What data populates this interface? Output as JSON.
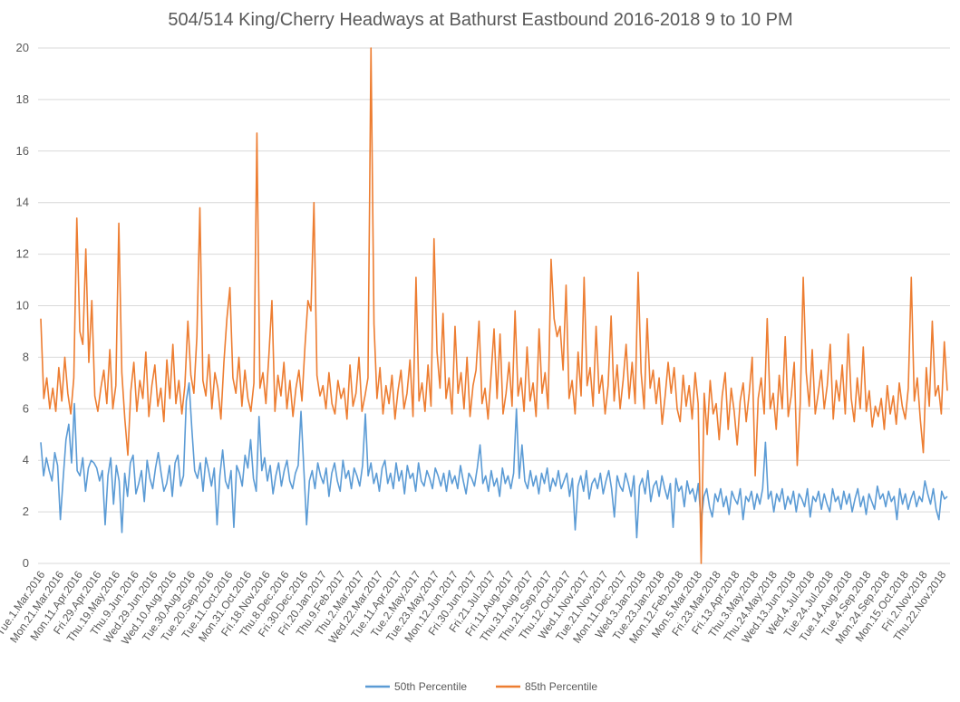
{
  "chart_data": {
    "type": "line",
    "title": "504/514 King/Cherry Headways at Bathurst Eastbound 2016-2018 9 to 10 PM",
    "xlabel": "",
    "ylabel": "",
    "ylim": [
      0,
      20
    ],
    "yticks": [
      0,
      2,
      4,
      6,
      8,
      10,
      12,
      14,
      16,
      18,
      20
    ],
    "grid": true,
    "legend_position": "bottom",
    "x_tick_labels": [
      "Tue.1.Mar.2016",
      "Mon.21.Mar.2016",
      "Mon.11.Apr.2016",
      "Fri.29.Apr.2016",
      "Thu.19.May.2016",
      "Thu.9.Jun.2016",
      "Wed.29.Jun.2016",
      "Wed.10.Aug.2016",
      "Tue.30.Aug.2016",
      "Tue.20.Sep.2016",
      "Tue.11.Oct.2016",
      "Mon.31.Oct.2016",
      "Fri.18.Nov.2016",
      "Thu.8.Dec.2016",
      "Fri.30.Dec.2016",
      "Fri.20.Jan.2017",
      "Thu.9.Feb.2017",
      "Thu.2.Mar.2017",
      "Wed.22.Mar.2017",
      "Tue.11.Apr.2017",
      "Tue.2.May.2017",
      "Tue.23.May.2017",
      "Mon.12.Jun.2017",
      "Fri.30.Jun.2017",
      "Fri.21.Jul.2017",
      "Fri.11.Aug.2017",
      "Thu.31.Aug.2017",
      "Thu.21.Sep.2017",
      "Thu.12.Oct.2017",
      "Wed.1.Nov.2017",
      "Tue.21.Nov.2017",
      "Mon.11.Dec.2017",
      "Wed.3.Jan.2018",
      "Tue.23.Jan.2018",
      "Mon.12.Feb.2018",
      "Mon.5.Mar.2018",
      "Fri.23.Mar.2018",
      "Fri.13.Apr.2018",
      "Thu.3.May.2018",
      "Thu.24.May.2018",
      "Wed.13.Jun.2018",
      "Wed.4.Jul.2018",
      "Tue.24.Jul.2018",
      "Tue.14.Aug.2018",
      "Tue.4.Sep.2018",
      "Mon.24.Sep.2018",
      "Mon.15.Oct.2018",
      "Fri.2.Nov.2018",
      "Thu.22.Nov.2018"
    ],
    "series": [
      {
        "name": "50th Percentile",
        "color": "#5b9bd5",
        "values": [
          4.7,
          3.4,
          4.1,
          3.6,
          3.2,
          4.3,
          3.8,
          1.7,
          3.3,
          4.8,
          5.4,
          3.9,
          6.2,
          3.6,
          3.4,
          4.1,
          2.8,
          3.7,
          4.0,
          3.9,
          3.7,
          3.2,
          3.6,
          1.5,
          3.4,
          4.1,
          2.3,
          3.8,
          3.2,
          1.2,
          3.5,
          2.6,
          3.9,
          4.2,
          2.7,
          3.1,
          3.6,
          2.4,
          4.0,
          3.3,
          2.9,
          3.7,
          4.3,
          3.5,
          2.8,
          3.1,
          3.8,
          2.6,
          3.9,
          4.2,
          3.0,
          3.4,
          6.3,
          7.0,
          5.2,
          3.6,
          3.3,
          3.9,
          2.8,
          4.1,
          3.6,
          3.0,
          3.7,
          1.5,
          3.4,
          4.4,
          3.2,
          2.9,
          3.6,
          1.4,
          3.8,
          3.5,
          3.0,
          4.2,
          3.7,
          4.8,
          3.3,
          2.8,
          5.7,
          3.6,
          4.1,
          3.2,
          3.8,
          2.7,
          3.4,
          3.9,
          3.0,
          3.6,
          4.0,
          3.2,
          2.9,
          3.5,
          3.8,
          5.9,
          3.7,
          1.5,
          3.2,
          3.6,
          2.9,
          3.9,
          3.4,
          3.1,
          3.7,
          2.6,
          3.5,
          3.9,
          3.2,
          2.8,
          4.0,
          3.3,
          3.6,
          2.9,
          3.7,
          3.4,
          3.0,
          3.8,
          5.8,
          3.4,
          3.9,
          3.1,
          3.5,
          2.8,
          3.7,
          4.0,
          3.1,
          3.5,
          2.9,
          3.9,
          3.2,
          3.6,
          2.7,
          3.8,
          3.3,
          3.5,
          2.8,
          3.9,
          3.2,
          3.0,
          3.6,
          3.3,
          2.9,
          3.7,
          3.4,
          3.0,
          3.5,
          2.8,
          3.6,
          3.1,
          3.4,
          2.9,
          3.8,
          3.2,
          2.7,
          3.5,
          3.3,
          3.0,
          3.7,
          4.6,
          3.1,
          3.4,
          2.8,
          3.6,
          3.0,
          3.3,
          2.6,
          3.7,
          3.1,
          3.4,
          2.9,
          3.5,
          6.0,
          3.3,
          4.6,
          3.2,
          2.9,
          3.6,
          3.0,
          3.4,
          2.7,
          3.5,
          3.1,
          3.7,
          2.8,
          3.3,
          3.0,
          3.6,
          2.9,
          3.2,
          3.5,
          2.6,
          3.3,
          1.3,
          3.0,
          3.4,
          2.8,
          3.6,
          2.5,
          3.1,
          3.3,
          2.9,
          3.5,
          2.7,
          3.2,
          3.6,
          2.9,
          1.8,
          3.4,
          3.0,
          2.8,
          3.5,
          3.1,
          2.6,
          3.4,
          1.0,
          3.0,
          3.3,
          2.7,
          3.6,
          2.4,
          3.0,
          3.2,
          2.6,
          3.4,
          2.9,
          2.5,
          3.1,
          1.4,
          3.3,
          2.8,
          3.0,
          2.2,
          3.2,
          2.7,
          2.9,
          2.4,
          3.1,
          1.6,
          2.6,
          2.9,
          2.2,
          1.8,
          2.7,
          2.4,
          2.9,
          2.2,
          2.6,
          1.9,
          2.8,
          2.5,
          2.3,
          2.9,
          1.7,
          2.6,
          2.4,
          2.8,
          2.1,
          2.7,
          2.3,
          2.9,
          4.7,
          2.5,
          2.8,
          2.0,
          2.7,
          2.4,
          2.9,
          2.1,
          2.6,
          2.3,
          2.8,
          2.0,
          2.7,
          2.5,
          2.2,
          2.9,
          1.8,
          2.6,
          2.4,
          2.8,
          2.1,
          2.7,
          2.3,
          2.0,
          2.9,
          2.4,
          2.6,
          2.1,
          2.8,
          2.3,
          2.7,
          2.0,
          2.5,
          2.9,
          2.2,
          2.6,
          1.9,
          2.7,
          2.4,
          2.1,
          3.0,
          2.5,
          2.7,
          2.2,
          2.8,
          2.4,
          2.6,
          1.7,
          2.9,
          2.3,
          2.7,
          2.1,
          2.5,
          2.8,
          2.2,
          2.6,
          2.4,
          3.2,
          2.7,
          2.3,
          2.9,
          2.1,
          1.7,
          2.8,
          2.5,
          2.6
        ]
      },
      {
        "name": "85th Percentile",
        "color": "#ed7d31",
        "values": [
          9.5,
          6.4,
          7.2,
          6.0,
          6.8,
          5.9,
          7.6,
          6.3,
          8.0,
          6.6,
          5.8,
          7.2,
          13.4,
          9.0,
          8.5,
          12.2,
          7.8,
          10.2,
          6.5,
          5.9,
          6.8,
          7.5,
          6.2,
          8.3,
          6.0,
          6.9,
          13.2,
          7.4,
          5.6,
          4.2,
          6.7,
          7.8,
          5.9,
          7.1,
          6.4,
          8.2,
          5.7,
          6.9,
          7.7,
          6.1,
          6.8,
          5.5,
          7.9,
          6.4,
          8.5,
          6.2,
          7.1,
          5.8,
          6.9,
          9.4,
          7.3,
          6.6,
          8.8,
          13.8,
          7.1,
          6.5,
          8.1,
          6.0,
          7.4,
          6.8,
          5.6,
          7.8,
          9.5,
          10.7,
          7.2,
          6.6,
          8.0,
          6.1,
          7.5,
          6.4,
          5.9,
          7.0,
          16.7,
          6.8,
          7.4,
          6.2,
          8.1,
          10.2,
          5.9,
          7.3,
          6.5,
          7.8,
          6.0,
          7.1,
          5.7,
          6.8,
          7.5,
          6.3,
          8.4,
          10.2,
          9.8,
          14.0,
          7.3,
          6.5,
          6.9,
          6.0,
          7.4,
          6.2,
          5.8,
          7.1,
          6.4,
          6.8,
          5.6,
          7.7,
          6.1,
          6.6,
          8.0,
          5.9,
          6.5,
          7.2,
          20.0,
          9.3,
          6.4,
          7.6,
          5.8,
          6.9,
          6.2,
          7.3,
          5.6,
          6.7,
          7.5,
          6.0,
          6.6,
          7.9,
          5.7,
          11.1,
          6.3,
          7.0,
          5.9,
          7.7,
          6.1,
          12.6,
          8.2,
          6.8,
          9.7,
          6.4,
          7.2,
          5.8,
          9.2,
          6.6,
          7.4,
          6.0,
          8.0,
          5.7,
          6.9,
          7.5,
          9.4,
          6.2,
          6.8,
          5.6,
          7.3,
          9.1,
          6.4,
          8.9,
          5.8,
          6.6,
          7.8,
          6.1,
          9.8,
          6.5,
          7.2,
          5.9,
          8.4,
          6.3,
          7.0,
          5.7,
          9.1,
          6.6,
          7.4,
          6.0,
          11.8,
          9.5,
          8.8,
          9.2,
          7.5,
          10.8,
          6.4,
          7.1,
          5.8,
          8.2,
          6.5,
          11.1,
          6.9,
          7.6,
          6.1,
          9.2,
          6.6,
          7.3,
          5.8,
          6.9,
          9.6,
          6.3,
          7.7,
          6.0,
          7.1,
          8.5,
          6.4,
          7.8,
          6.2,
          11.3,
          7.4,
          6.0,
          9.5,
          6.8,
          7.5,
          6.2,
          7.2,
          5.4,
          6.5,
          7.8,
          6.6,
          7.6,
          6.0,
          5.5,
          7.3,
          6.1,
          6.9,
          5.6,
          7.4,
          6.2,
          0.0,
          6.6,
          5.0,
          7.1,
          5.8,
          6.2,
          4.8,
          6.5,
          7.4,
          5.2,
          6.8,
          5.9,
          4.6,
          6.3,
          7.0,
          5.5,
          6.6,
          8.0,
          3.4,
          6.4,
          7.2,
          5.8,
          9.5,
          6.0,
          6.6,
          5.2,
          7.3,
          6.0,
          8.8,
          5.7,
          6.5,
          7.8,
          3.8,
          6.2,
          11.1,
          7.4,
          6.1,
          8.3,
          5.8,
          6.6,
          7.5,
          6.0,
          6.9,
          8.5,
          5.6,
          7.1,
          6.3,
          7.7,
          5.8,
          8.9,
          6.4,
          5.5,
          7.2,
          6.0,
          8.4,
          5.9,
          6.7,
          5.3,
          6.1,
          5.7,
          6.4,
          5.2,
          6.9,
          5.8,
          6.5,
          5.4,
          7.0,
          6.1,
          5.6,
          6.8,
          11.1,
          6.3,
          7.2,
          5.6,
          4.3,
          7.6,
          6.1,
          9.4,
          6.5,
          6.9,
          5.8,
          8.6,
          6.7
        ]
      }
    ]
  }
}
